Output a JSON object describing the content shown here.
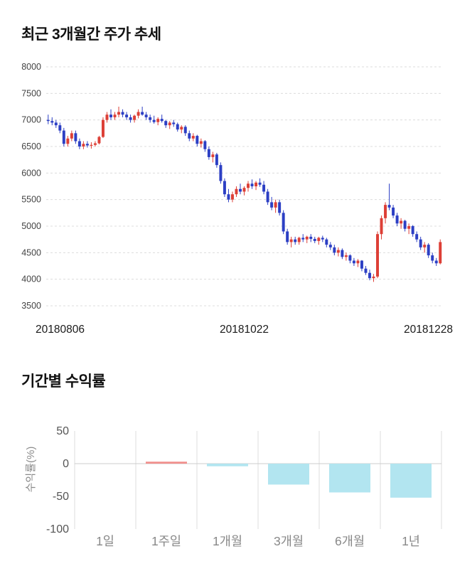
{
  "titles": {
    "candlestick": "최근 3개월간 주가 추세",
    "returns": "기간별 수익률"
  },
  "chart_data": [
    {
      "type": "candlestick",
      "title": "최근 3개월간 주가 추세",
      "ylim": [
        3500,
        8000
      ],
      "y_ticks": [
        8000,
        7500,
        7000,
        6500,
        6000,
        5500,
        5000,
        4500,
        4000,
        3500
      ],
      "x_tick_labels": [
        "20180806",
        "20181022",
        "20181228"
      ],
      "up_color": "#dd3f36",
      "down_color": "#2c3fc4",
      "grid_color": "#dcdcdc",
      "candles": [
        [
          7000,
          7100,
          6920,
          6980
        ],
        [
          6980,
          7050,
          6900,
          6950
        ],
        [
          6950,
          7000,
          6850,
          6900
        ],
        [
          6900,
          6950,
          6750,
          6800
        ],
        [
          6800,
          6850,
          6500,
          6550
        ],
        [
          6550,
          6700,
          6500,
          6650
        ],
        [
          6650,
          6800,
          6600,
          6750
        ],
        [
          6750,
          6800,
          6550,
          6600
        ],
        [
          6600,
          6650,
          6450,
          6500
        ],
        [
          6500,
          6600,
          6450,
          6550
        ],
        [
          6550,
          6600,
          6480,
          6520
        ],
        [
          6520,
          6580,
          6460,
          6530
        ],
        [
          6530,
          6600,
          6500,
          6560
        ],
        [
          6560,
          6700,
          6540,
          6680
        ],
        [
          6680,
          7050,
          6660,
          7000
        ],
        [
          7000,
          7150,
          6950,
          7100
        ],
        [
          7100,
          7200,
          7000,
          7050
        ],
        [
          7050,
          7150,
          7000,
          7100
        ],
        [
          7100,
          7250,
          7050,
          7150
        ],
        [
          7150,
          7200,
          7050,
          7100
        ],
        [
          7100,
          7150,
          7000,
          7050
        ],
        [
          7050,
          7100,
          6950,
          7000
        ],
        [
          7000,
          7100,
          6950,
          7080
        ],
        [
          7080,
          7200,
          7030,
          7150
        ],
        [
          7150,
          7250,
          7080,
          7100
        ],
        [
          7100,
          7150,
          7000,
          7050
        ],
        [
          7050,
          7100,
          6950,
          7000
        ],
        [
          7000,
          7080,
          6930,
          6960
        ],
        [
          6960,
          7050,
          6900,
          7020
        ],
        [
          7020,
          7100,
          6950,
          6980
        ],
        [
          6980,
          7000,
          6850,
          6900
        ],
        [
          6900,
          6980,
          6830,
          6950
        ],
        [
          6950,
          7000,
          6870,
          6920
        ],
        [
          6920,
          6950,
          6780,
          6820
        ],
        [
          6820,
          6900,
          6750,
          6870
        ],
        [
          6870,
          6900,
          6700,
          6750
        ],
        [
          6750,
          6800,
          6600,
          6650
        ],
        [
          6650,
          6750,
          6600,
          6700
        ],
        [
          6700,
          6720,
          6500,
          6550
        ],
        [
          6550,
          6650,
          6480,
          6600
        ],
        [
          6600,
          6620,
          6400,
          6450
        ],
        [
          6450,
          6500,
          6250,
          6300
        ],
        [
          6300,
          6400,
          6200,
          6350
        ],
        [
          6350,
          6380,
          6100,
          6150
        ],
        [
          6150,
          6200,
          5800,
          5850
        ],
        [
          5850,
          5900,
          5550,
          5600
        ],
        [
          5600,
          5700,
          5450,
          5500
        ],
        [
          5500,
          5650,
          5450,
          5600
        ],
        [
          5600,
          5750,
          5550,
          5700
        ],
        [
          5700,
          5800,
          5600,
          5650
        ],
        [
          5650,
          5750,
          5580,
          5720
        ],
        [
          5720,
          5850,
          5650,
          5800
        ],
        [
          5800,
          5880,
          5700,
          5750
        ],
        [
          5750,
          5850,
          5680,
          5820
        ],
        [
          5820,
          5900,
          5740,
          5780
        ],
        [
          5780,
          5850,
          5600,
          5650
        ],
        [
          5650,
          5700,
          5400,
          5450
        ],
        [
          5450,
          5550,
          5300,
          5350
        ],
        [
          5350,
          5500,
          5250,
          5450
        ],
        [
          5450,
          5500,
          5200,
          5250
        ],
        [
          5250,
          5300,
          4850,
          4900
        ],
        [
          4900,
          4950,
          4650,
          4700
        ],
        [
          4700,
          4800,
          4600,
          4750
        ],
        [
          4750,
          4800,
          4650,
          4700
        ],
        [
          4700,
          4800,
          4650,
          4780
        ],
        [
          4780,
          4850,
          4700,
          4750
        ],
        [
          4750,
          4820,
          4680,
          4800
        ],
        [
          4800,
          4850,
          4700,
          4760
        ],
        [
          4760,
          4800,
          4680,
          4720
        ],
        [
          4720,
          4800,
          4650,
          4780
        ],
        [
          4780,
          4820,
          4700,
          4750
        ],
        [
          4750,
          4780,
          4600,
          4650
        ],
        [
          4650,
          4700,
          4550,
          4600
        ],
        [
          4600,
          4650,
          4450,
          4500
        ],
        [
          4500,
          4600,
          4430,
          4550
        ],
        [
          4550,
          4580,
          4380,
          4420
        ],
        [
          4420,
          4500,
          4350,
          4450
        ],
        [
          4450,
          4470,
          4300,
          4350
        ],
        [
          4350,
          4400,
          4250,
          4300
        ],
        [
          4300,
          4380,
          4230,
          4350
        ],
        [
          4350,
          4360,
          4150,
          4200
        ],
        [
          4200,
          4250,
          4080,
          4120
        ],
        [
          4120,
          4180,
          3980,
          4020
        ],
        [
          4020,
          4100,
          3950,
          4050
        ],
        [
          4050,
          4900,
          4020,
          4850
        ],
        [
          4850,
          5200,
          4750,
          5150
        ],
        [
          5150,
          5450,
          5050,
          5400
        ],
        [
          5400,
          5800,
          5300,
          5350
        ],
        [
          5350,
          5400,
          5150,
          5200
        ],
        [
          5200,
          5250,
          5000,
          5050
        ],
        [
          5050,
          5150,
          4950,
          5100
        ],
        [
          5100,
          5120,
          4900,
          4950
        ],
        [
          4950,
          5050,
          4850,
          5000
        ],
        [
          5000,
          5020,
          4800,
          4850
        ],
        [
          4850,
          4900,
          4700,
          4750
        ],
        [
          4750,
          4800,
          4550,
          4600
        ],
        [
          4600,
          4700,
          4500,
          4650
        ],
        [
          4650,
          4680,
          4400,
          4450
        ],
        [
          4450,
          4500,
          4300,
          4350
        ],
        [
          4350,
          4400,
          4250,
          4300
        ],
        [
          4300,
          4750,
          4280,
          4700
        ]
      ]
    },
    {
      "type": "bar",
      "title": "기간별 수익률",
      "categories": [
        "1일",
        "1주일",
        "1개월",
        "3개월",
        "6개월",
        "1년"
      ],
      "values": [
        0,
        3,
        -4,
        -32,
        -44,
        -52
      ],
      "ylabel": "수익률(%)",
      "y_ticks": [
        50,
        0,
        -50,
        -100
      ],
      "ylim": [
        -100,
        50
      ],
      "positive_color": "#f0908d",
      "negative_color": "#b2e5f0",
      "grid_color": "#dddddd",
      "zero_line_color": "#cccccc"
    }
  ]
}
